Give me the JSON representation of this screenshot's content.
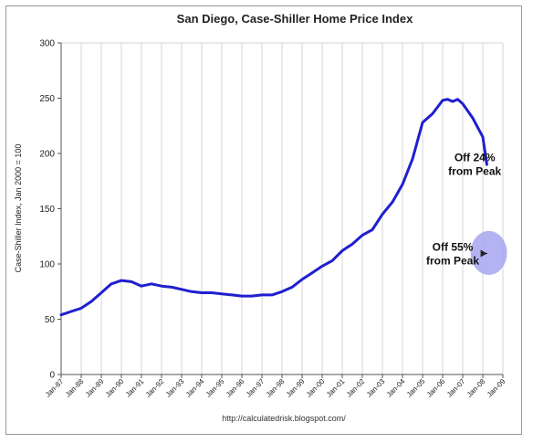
{
  "chart_data": {
    "type": "line",
    "title": "San Diego, Case-Shiller Home Price Index",
    "ylabel": "Case-Shiller Index, Jan 2000 = 100",
    "xlabel": "",
    "ylim": [
      0,
      300
    ],
    "yticks": [
      0,
      50,
      100,
      150,
      200,
      250,
      300
    ],
    "xtick_labels": [
      "Jan-87",
      "Jan-88",
      "Jan-89",
      "Jan-90",
      "Jan-91",
      "Jan-92",
      "Jan-93",
      "Jan-94",
      "Jan-95",
      "Jan-96",
      "Jan-97",
      "Jan-98",
      "Jan-99",
      "Jan-00",
      "Jan-01",
      "Jan-02",
      "Jan-03",
      "Jan-04",
      "Jan-05",
      "Jan-06",
      "Jan-07",
      "Jan-08",
      "Jan-09"
    ],
    "grid": {
      "vertical": true,
      "horizontal": false
    },
    "legend": "none",
    "line_color": "#1f1fcf",
    "series": [
      {
        "x": [
          1987.0,
          1987.5,
          1988.0,
          1988.5,
          1989.0,
          1989.5,
          1990.0,
          1990.5,
          1991.0,
          1991.5,
          1992.0,
          1992.5,
          1993.0,
          1993.5,
          1994.0,
          1994.5,
          1995.0,
          1995.5,
          1996.0,
          1996.5,
          1997.0,
          1997.5,
          1998.0,
          1998.5,
          1999.0,
          1999.5,
          2000.0,
          2000.5,
          2001.0,
          2001.5,
          2002.0,
          2002.5,
          2003.0,
          2003.5,
          2004.0,
          2004.5,
          2005.0,
          2005.5,
          2006.0,
          2006.25,
          2006.5,
          2006.75,
          2007.0,
          2007.5,
          2008.0,
          2008.2
        ],
        "values": [
          54,
          57,
          60,
          66,
          74,
          82,
          85,
          84,
          80,
          82,
          80,
          79,
          77,
          75,
          74,
          74,
          73,
          72,
          71,
          71,
          72,
          72,
          75,
          79,
          86,
          92,
          98,
          103,
          112,
          118,
          126,
          131,
          145,
          156,
          172,
          195,
          228,
          236,
          248,
          249,
          247,
          249,
          245,
          232,
          215,
          190
        ]
      }
    ],
    "annotations": [
      {
        "lines": [
          "Off 24%",
          "from Peak"
        ],
        "at_x": 2007.6,
        "at_y": 193
      },
      {
        "lines": [
          "Off 55%",
          "from Peak"
        ],
        "at_x": 2006.5,
        "at_y": 112,
        "marker": "circle",
        "marker_color": "#a6a6ee",
        "marker_x": 2008.3,
        "marker_y": 110
      }
    ],
    "source": "http://calculatedrisk.blogspot.com/"
  }
}
